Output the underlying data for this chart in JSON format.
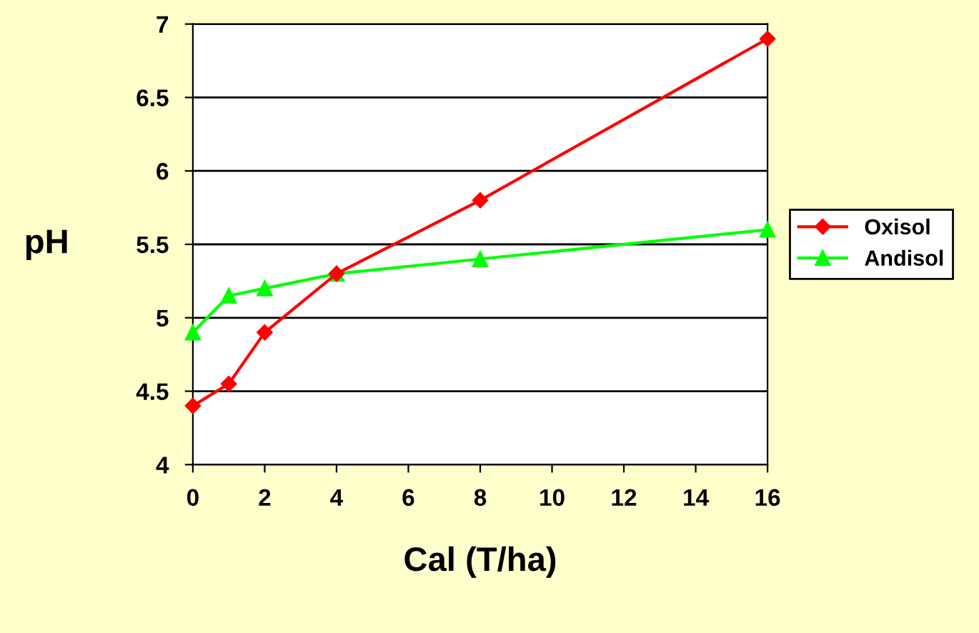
{
  "chart_data": {
    "type": "line",
    "xlabel": "Cal (T/ha)",
    "ylabel": "pH",
    "x": [
      0,
      1,
      2,
      4,
      8,
      16
    ],
    "series": [
      {
        "name": "Oxisol",
        "color": "#ff0000",
        "marker": "diamond",
        "values": [
          4.4,
          4.55,
          4.9,
          5.3,
          5.8,
          6.9
        ]
      },
      {
        "name": "Andisol",
        "color": "#00ff00",
        "marker": "triangle",
        "values": [
          4.9,
          5.15,
          5.2,
          5.3,
          5.4,
          5.6
        ]
      }
    ],
    "xlim": [
      0,
      16
    ],
    "xticks": [
      0,
      2,
      4,
      6,
      8,
      10,
      12,
      14,
      16
    ],
    "ylim": [
      4,
      7
    ],
    "yticks": [
      4,
      4.5,
      5,
      5.5,
      6,
      6.5,
      7
    ],
    "grid": "y",
    "legend": "right"
  }
}
